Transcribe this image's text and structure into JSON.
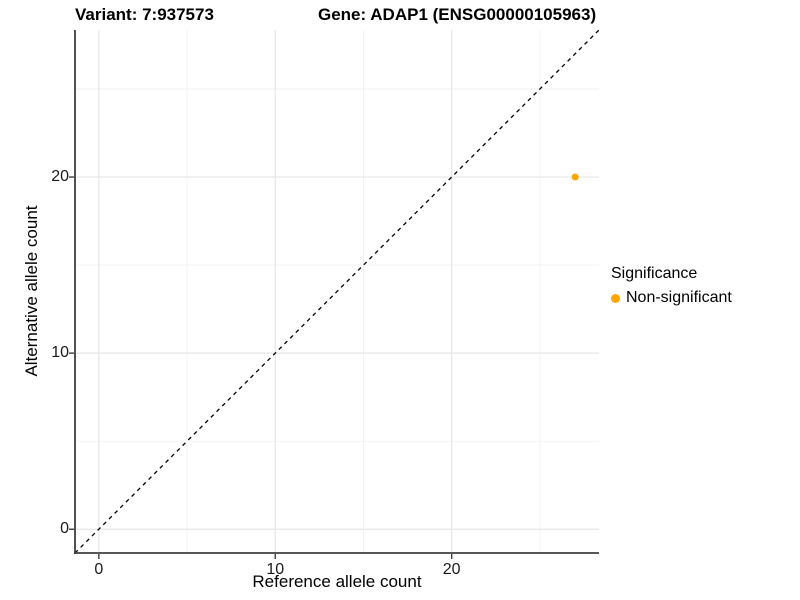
{
  "titles": {
    "variant": "Variant: 7:937573",
    "gene": "Gene: ADAP1 (ENSG00000105963)"
  },
  "axes": {
    "x_label": "Reference allele count",
    "y_label": "Alternative allele count"
  },
  "legend": {
    "title": "Significance",
    "items": [
      {
        "label": "Non-significant",
        "color": "#FFA500"
      }
    ]
  },
  "chart_data": {
    "type": "scatter",
    "title": "Variant: 7:937573 — Gene: ADAP1 (ENSG00000105963)",
    "xlabel": "Reference allele count",
    "ylabel": "Alternative allele count",
    "xlim": [
      -1.35,
      28.35
    ],
    "ylim": [
      -1.35,
      28.35
    ],
    "x_ticks": [
      0,
      10,
      20
    ],
    "y_ticks": [
      0,
      10,
      20
    ],
    "x_minor_ticks": [
      5,
      15,
      25
    ],
    "y_minor_ticks": [
      5,
      15,
      25
    ],
    "grid": "major+minor",
    "legend_position": "right",
    "series": [
      {
        "name": "Non-significant",
        "color": "#FFA500",
        "point_radius": 3.5,
        "points": [
          {
            "x": 27,
            "y": 20
          }
        ]
      }
    ],
    "reference_line": {
      "kind": "identity y=x",
      "style": "dashed",
      "color": "#000000"
    }
  },
  "colors": {
    "background": "#FFFFFF",
    "grid_major": "#E6E6E6",
    "grid_minor": "#F2F2F2",
    "axis": "#3F3F3F",
    "tick_text": "#1A1A1A",
    "point": "#FFA500"
  }
}
